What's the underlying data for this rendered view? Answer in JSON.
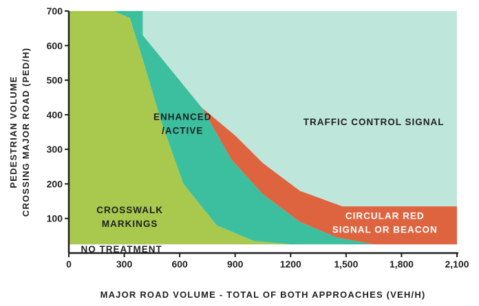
{
  "chart_data": {
    "type": "area",
    "xlabel": "MAJOR ROAD VOLUME - TOTAL OF BOTH APPROACHES (VEH/H)",
    "ylabel_lines": [
      "PEDESTRIAN VOLUME",
      "CROSSING MAJOR ROAD (PED/H)"
    ],
    "xlim": [
      0,
      2100
    ],
    "ylim": [
      0,
      700
    ],
    "x_ticks": [
      {
        "value": 0,
        "label": "0"
      },
      {
        "value": 300,
        "label": "300"
      },
      {
        "value": 600,
        "label": "600"
      },
      {
        "value": 900,
        "label": "900"
      },
      {
        "value": 1200,
        "label": "1200"
      },
      {
        "value": 1500,
        "label": "1,500"
      },
      {
        "value": 1800,
        "label": "1,800"
      },
      {
        "value": 2100,
        "label": "2,100"
      }
    ],
    "y_ticks": [
      {
        "value": 100,
        "label": "100"
      },
      {
        "value": 200,
        "label": "200"
      },
      {
        "value": 300,
        "label": "300"
      },
      {
        "value": 400,
        "label": "400"
      },
      {
        "value": 500,
        "label": "500"
      },
      {
        "value": 600,
        "label": "600"
      },
      {
        "value": 700,
        "label": "700"
      }
    ],
    "colors": {
      "crosswalk": "#a9c84e",
      "enhanced": "#3bbf9f",
      "circular": "#de6440",
      "signal": "#bfe6da",
      "axis": "#1f1f1f"
    },
    "regions": [
      {
        "key": "signal",
        "lines": [
          "TRAFFIC  CONTROL SIGNAL"
        ],
        "label_at": {
          "x": 1650,
          "y": 380
        },
        "polygon": [
          [
            400,
            700
          ],
          [
            2100,
            700
          ],
          [
            2100,
            135
          ],
          [
            1480,
            135
          ],
          [
            1250,
            180
          ],
          [
            1050,
            260
          ],
          [
            900,
            340
          ],
          [
            720,
            420
          ],
          [
            400,
            630
          ]
        ]
      },
      {
        "key": "circular",
        "lines": [
          "CIRCULAR RED",
          "SIGNAL OR BEACON"
        ],
        "label_at": {
          "x": 1710,
          "y": 88
        },
        "polygon": [
          [
            720,
            420
          ],
          [
            900,
            340
          ],
          [
            1050,
            260
          ],
          [
            1250,
            180
          ],
          [
            1480,
            135
          ],
          [
            2100,
            135
          ],
          [
            2100,
            25
          ],
          [
            1650,
            25
          ],
          [
            1450,
            45
          ],
          [
            1250,
            90
          ],
          [
            1050,
            170
          ],
          [
            880,
            270
          ],
          [
            720,
            420
          ]
        ]
      },
      {
        "key": "enhanced",
        "lines": [
          "ENHANCED",
          "/ACTIVE"
        ],
        "label_at": {
          "x": 615,
          "y": 375
        },
        "polygon": [
          [
            240,
            700
          ],
          [
            400,
            700
          ],
          [
            400,
            630
          ],
          [
            720,
            420
          ],
          [
            880,
            270
          ],
          [
            1050,
            170
          ],
          [
            1250,
            90
          ],
          [
            1450,
            45
          ],
          [
            1650,
            25
          ],
          [
            1200,
            25
          ],
          [
            1000,
            35
          ],
          [
            800,
            80
          ],
          [
            620,
            200
          ],
          [
            500,
            380
          ],
          [
            400,
            560
          ],
          [
            330,
            680
          ]
        ]
      },
      {
        "key": "crosswalk",
        "lines": [
          "CROSSWALK",
          "MARKINGS"
        ],
        "label_at": {
          "x": 330,
          "y": 105
        },
        "polygon": [
          [
            0,
            700
          ],
          [
            240,
            700
          ],
          [
            330,
            680
          ],
          [
            400,
            560
          ],
          [
            500,
            380
          ],
          [
            620,
            200
          ],
          [
            800,
            80
          ],
          [
            1000,
            35
          ],
          [
            1200,
            25
          ],
          [
            0,
            25
          ]
        ]
      }
    ],
    "bottom_label": {
      "text": "NO TREATMENT",
      "label_at": {
        "x": 65,
        "y": 12
      }
    }
  }
}
